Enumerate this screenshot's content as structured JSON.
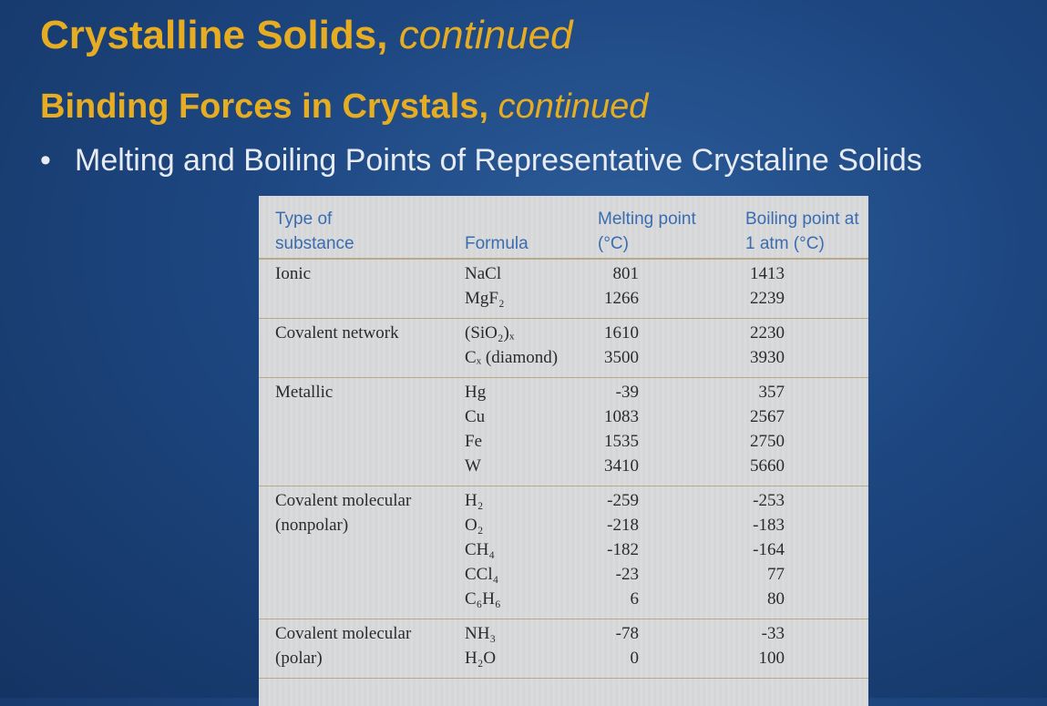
{
  "header": {
    "title": "Crystalline Solids,",
    "title_suffix": "continued",
    "subtitle": "Binding Forces in Crystals,",
    "subtitle_suffix": "continued",
    "bullet": "Melting and Boiling Points of Representative Crystaline Solids"
  },
  "table": {
    "columns": [
      "Type of substance",
      "Formula",
      "Melting point (°C)",
      "Boiling point at 1 atm (°C)"
    ],
    "groups": [
      {
        "type": "Ionic",
        "rows": [
          [
            "NaCl",
            801,
            1413
          ],
          [
            "MgF₂",
            1266,
            2239
          ]
        ]
      },
      {
        "type": "Covalent network",
        "rows": [
          [
            "(SiO₂)ₓ",
            1610,
            2230
          ],
          [
            "Cₓ (diamond)",
            3500,
            3930
          ]
        ]
      },
      {
        "type": "Metallic",
        "rows": [
          [
            "Hg",
            -39,
            357
          ],
          [
            "Cu",
            1083,
            2567
          ],
          [
            "Fe",
            1535,
            2750
          ],
          [
            "W",
            3410,
            5660
          ]
        ]
      },
      {
        "type": "Covalent molecular (nonpolar)",
        "rows": [
          [
            "H₂",
            -259,
            -253
          ],
          [
            "O₂",
            -218,
            -183
          ],
          [
            "CH₄",
            -182,
            -164
          ],
          [
            "CCl₄",
            -23,
            77
          ],
          [
            "C₆H₆",
            6,
            80
          ]
        ]
      },
      {
        "type": "Covalent molecular (polar)",
        "rows": [
          [
            "NH₃",
            -78,
            -33
          ],
          [
            "H₂O",
            0,
            100
          ]
        ]
      }
    ]
  }
}
